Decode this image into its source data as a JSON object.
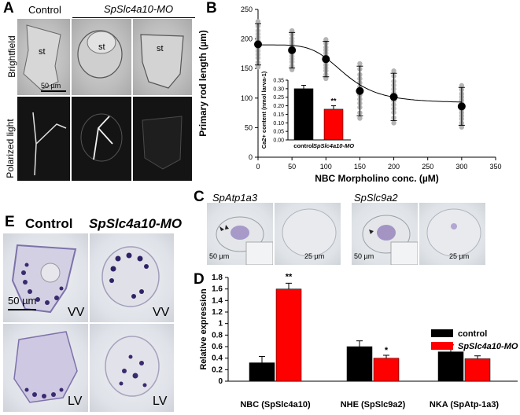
{
  "panel_labels": {
    "a": "A",
    "b": "B",
    "c": "C",
    "d": "D",
    "e": "E"
  },
  "panel_a": {
    "control_header": "Control",
    "mo_header": "SpSlc4a10-MO",
    "row_brightfield": "Brightfield",
    "row_polarized": "Polarized light",
    "st_label": "st",
    "scale_bar": "50 µm"
  },
  "panel_c": {
    "gene1": "SpAtp1a3",
    "gene2": "SpSlc9a2",
    "scale_50": "50 µm",
    "scale_25": "25 µm"
  },
  "panel_e": {
    "control_header": "Control",
    "mo_header": "SpSlc4a10-MO",
    "vv": "VV",
    "lv": "LV",
    "scale_bar": "50 µm"
  },
  "chart_data": [
    {
      "type": "scatter",
      "panel": "B",
      "xlabel": "NBC Morpholino conc. (µM)",
      "ylabel": "Primary rod length (µm)",
      "xlim": [
        0,
        350
      ],
      "ylim": [
        0,
        250
      ],
      "xticks": [
        0,
        50,
        100,
        150,
        200,
        250,
        300,
        350
      ],
      "yticks": [
        0,
        50,
        100,
        150,
        200,
        250
      ],
      "x": [
        0,
        50,
        100,
        150,
        200,
        300
      ],
      "mean": [
        191,
        181,
        166,
        112,
        102,
        86
      ],
      "error": [
        35,
        30,
        30,
        42,
        40,
        32
      ],
      "inset": {
        "type": "bar",
        "ylabel": "Ca2+ content (nmol larva-1)",
        "categories": [
          "control",
          "SpSlc4a10-MO"
        ],
        "values": [
          0.3,
          0.18
        ],
        "errors": [
          0.02,
          0.02
        ],
        "ylim": [
          0,
          0.35
        ],
        "yticks": [
          "0.00",
          "0.05",
          "0.10",
          "0.15",
          "0.20",
          "0.25",
          "0.30",
          "0.35"
        ],
        "annotation": "**",
        "colors": [
          "#000000",
          "#ff0000"
        ]
      }
    },
    {
      "type": "bar",
      "panel": "D",
      "ylabel": "Relative expression",
      "categories": [
        "NBC (SpSlc4a10)",
        "NHE (SpSlc9a2)",
        "NKA (SpAtp-1a3)"
      ],
      "ylim": [
        0,
        1.8
      ],
      "yticks": [
        "0",
        "0.2",
        "0.4",
        "0.6",
        "0.8",
        "1",
        "1.2",
        "1.4",
        "1.6",
        "1.8"
      ],
      "series": [
        {
          "name": "control",
          "values": [
            0.32,
            0.6,
            0.51
          ],
          "errors": [
            0.11,
            0.1,
            0.12
          ],
          "color": "#000000"
        },
        {
          "name": "SpSlc4a10-MO",
          "values": [
            1.6,
            0.4,
            0.39
          ],
          "errors": [
            0.1,
            0.05,
            0.05
          ],
          "color": "#ff0000"
        }
      ],
      "annotations": [
        "**",
        "*"
      ]
    }
  ]
}
